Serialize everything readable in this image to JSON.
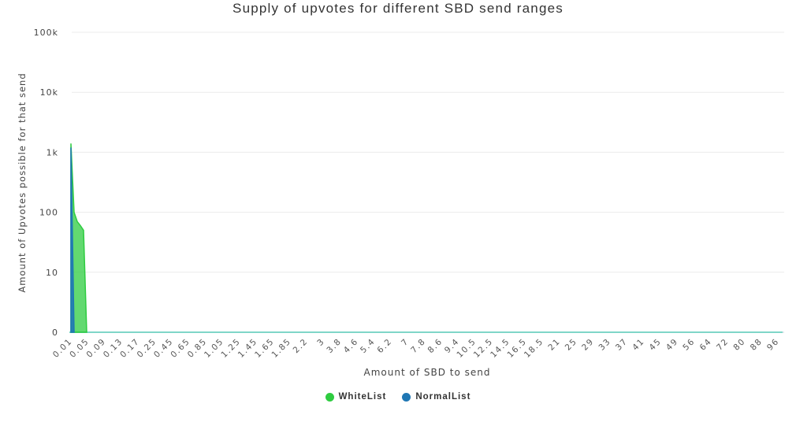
{
  "chart_data": {
    "type": "area",
    "title": "Supply of upvotes for different SBD send ranges",
    "xlabel": "Amount of SBD to send",
    "ylabel": "Amount of Upvotes possible for that send",
    "y_scale": "log",
    "y_ticks": [
      "0",
      "10",
      "100",
      "1k",
      "10k",
      "100k"
    ],
    "x_tick_labels": [
      "0.01",
      "0.05",
      "0.09",
      "0.13",
      "0.17",
      "0.25",
      "0.45",
      "0.65",
      "0.85",
      "1.05",
      "1.25",
      "1.45",
      "1.65",
      "1.85",
      "2.2",
      "3",
      "3.8",
      "4.6",
      "5.4",
      "6.2",
      "7",
      "7.8",
      "8.6",
      "9.4",
      "10.5",
      "12.5",
      "14.5",
      "16.5",
      "18.5",
      "21",
      "25",
      "29",
      "33",
      "37",
      "41",
      "45",
      "49",
      "56",
      "64",
      "72",
      "80",
      "88",
      "96"
    ],
    "grid": true,
    "legend_position": "bottom",
    "series": [
      {
        "name": "WhiteList",
        "color": "#2ecc40",
        "points": [
          [
            0.01,
            1400
          ],
          [
            0.02,
            100
          ],
          [
            0.03,
            70
          ],
          [
            0.04,
            60
          ],
          [
            0.05,
            50
          ],
          [
            0.06,
            0
          ]
        ]
      },
      {
        "name": "NormalList",
        "color": "#1f77b4",
        "points": [
          [
            0.01,
            1200
          ],
          [
            0.02,
            0
          ]
        ]
      }
    ]
  },
  "legend": {
    "whitelist_label": "WhiteList",
    "normallist_label": "NormalList",
    "whitelist_color": "#2ecc40",
    "normallist_color": "#1f77b4"
  }
}
